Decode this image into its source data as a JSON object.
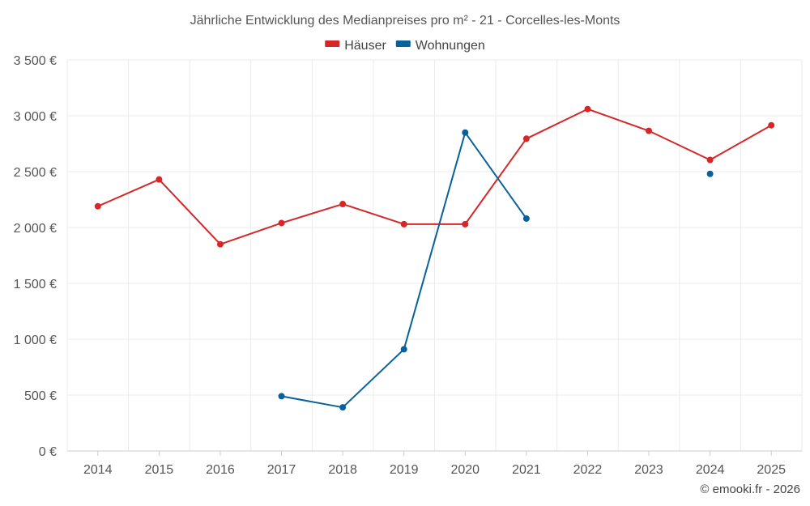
{
  "chart_data": {
    "type": "line",
    "title": "Jährliche Entwicklung des Medianpreises pro m² - 21 - Corcelles-les-Monts",
    "xlabel": "",
    "ylabel": "",
    "x": [
      "2014",
      "2015",
      "2016",
      "2017",
      "2018",
      "2019",
      "2020",
      "2021",
      "2022",
      "2023",
      "2024",
      "2025"
    ],
    "ylim": [
      0,
      3500
    ],
    "yticks": [
      0,
      500,
      1000,
      1500,
      2000,
      2500,
      3000,
      3500
    ],
    "ytick_labels": [
      "0 €",
      "500 €",
      "1 000 €",
      "1 500 €",
      "2 000 €",
      "2 500 €",
      "3 000 €",
      "3 500 €"
    ],
    "grid": true,
    "legend_position": "top-center",
    "series": [
      {
        "name": "Häuser",
        "color": "#d62728",
        "values": [
          2190,
          2430,
          1850,
          2040,
          2210,
          2030,
          2030,
          2795,
          3060,
          2865,
          2605,
          2915
        ]
      },
      {
        "name": "Wohnungen",
        "color": "#08619b",
        "values": [
          null,
          null,
          null,
          490,
          390,
          910,
          2850,
          2080,
          null,
          null,
          2480,
          null
        ]
      }
    ],
    "credit": "© emooki.fr - 2026"
  }
}
